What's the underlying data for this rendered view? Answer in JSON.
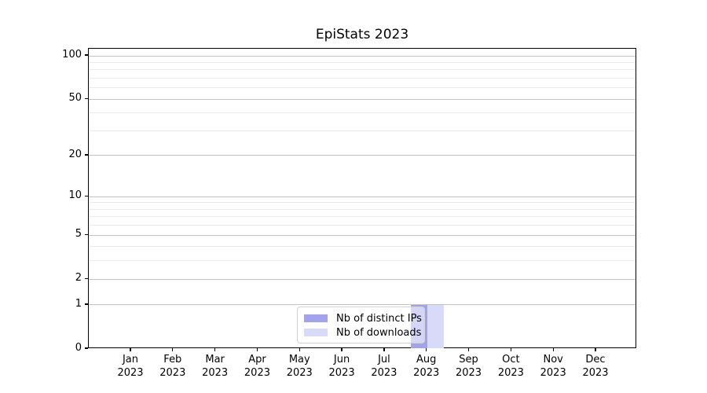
{
  "chart_data": {
    "type": "bar",
    "title": "EpiStats 2023",
    "categories": [
      "Jan 2023",
      "Feb 2023",
      "Mar 2023",
      "Apr 2023",
      "May 2023",
      "Jun 2023",
      "Jul 2023",
      "Aug 2023",
      "Sep 2023",
      "Oct 2023",
      "Nov 2023",
      "Dec 2023"
    ],
    "series": [
      {
        "name": "Nb of distinct IPs",
        "color": "#a2a2ef",
        "values": [
          0,
          0,
          0,
          0,
          0,
          0,
          0,
          1,
          0,
          0,
          0,
          0
        ]
      },
      {
        "name": "Nb of downloads",
        "color": "#d9d9f8",
        "values": [
          0,
          0,
          0,
          0,
          0,
          0,
          0,
          1,
          0,
          0,
          0,
          0
        ]
      }
    ],
    "xlabel": "",
    "ylabel": "",
    "yscale": "log1p",
    "ylim": [
      0,
      112
    ],
    "y_major_ticks": [
      0,
      1,
      2,
      5,
      10,
      20,
      50,
      100
    ],
    "y_minor_gridlines": [
      3,
      4,
      6,
      7,
      8,
      9,
      30,
      40,
      60,
      70,
      80,
      90
    ],
    "grid": true,
    "legend_position": "lower center",
    "colors": {
      "major_grid": "#c3c3c3",
      "minor_grid": "#ebebeb",
      "spine": "#000000",
      "text": "#000000",
      "background": "#ffffff"
    }
  }
}
